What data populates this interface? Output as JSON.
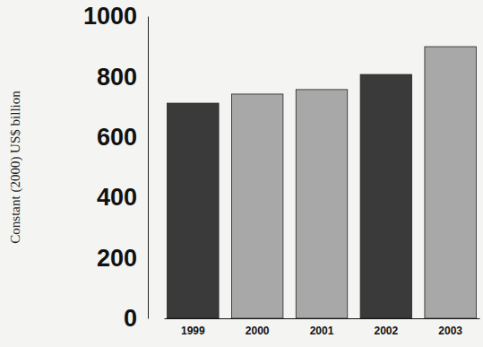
{
  "chart_data": {
    "type": "bar",
    "y_label": "Constant (2000) US$ billion",
    "categories": [
      "1999",
      "2000",
      "2001",
      "2002",
      "2003"
    ],
    "values": [
      712,
      742,
      757,
      807,
      899
    ],
    "colors": [
      "#3a3a3a",
      "#a8a8a8",
      "#a8a8a8",
      "#3a3a3a",
      "#a8a8a8"
    ],
    "ylim": [
      0,
      1000
    ],
    "yticks": [
      0,
      200,
      400,
      600,
      800,
      1000
    ]
  }
}
